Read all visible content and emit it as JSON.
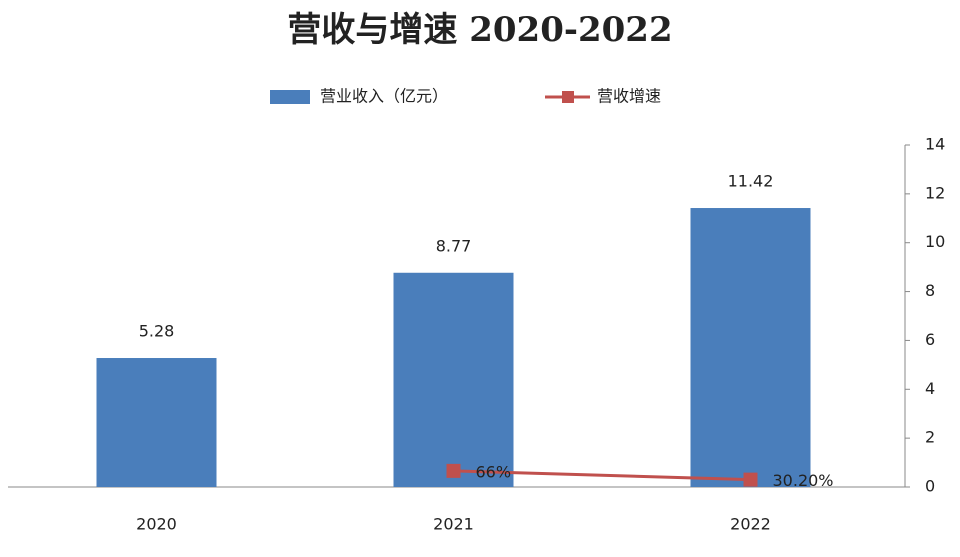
{
  "chart_data": {
    "type": "bar",
    "title": "营收与增速 2020-2022",
    "categories": [
      "2020",
      "2021",
      "2022"
    ],
    "series": [
      {
        "name": "营业收入（亿元）",
        "type": "bar",
        "color": "#4a7ebb",
        "values": [
          5.28,
          8.77,
          11.42
        ]
      },
      {
        "name": "营收增速",
        "type": "line",
        "color": "#c0504d",
        "values": [
          null,
          0.66,
          0.302
        ],
        "value_labels": [
          null,
          "66%",
          "30.20%"
        ]
      }
    ],
    "ylim": [
      0,
      14
    ],
    "yticks": [
      0,
      2,
      4,
      6,
      8,
      10,
      12,
      14
    ],
    "axis_side": "right",
    "grid": false
  }
}
